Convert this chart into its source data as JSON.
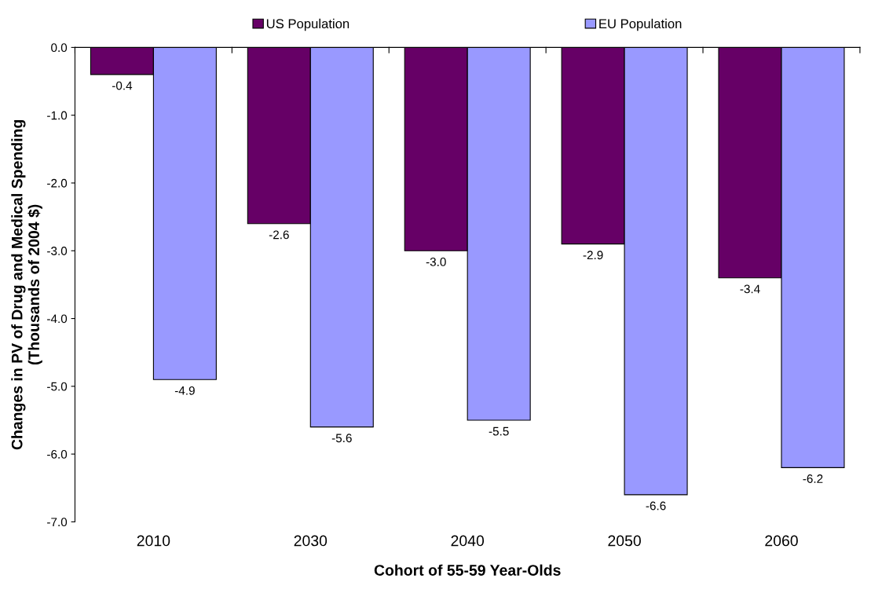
{
  "chart_data": {
    "type": "bar",
    "xlabel": "Cohort of 55-59 Year-Olds",
    "ylabel": "Changes in PV of Drug and Medical Spending\n(Thousands of 2004 $)",
    "categories": [
      "2010",
      "2030",
      "2040",
      "2050",
      "2060"
    ],
    "series": [
      {
        "name": "US Population",
        "color": "#660066",
        "values": [
          -0.4,
          -2.6,
          -3.0,
          -2.9,
          -3.4
        ],
        "value_labels": [
          "-0.4",
          "-2.6",
          "-3.0",
          "-2.9",
          "-3.4"
        ]
      },
      {
        "name": "EU Population",
        "color": "#9999ff",
        "values": [
          -4.9,
          -5.6,
          -5.5,
          -6.6,
          -6.2
        ],
        "value_labels": [
          "-4.9",
          "-5.6",
          "-5.5",
          "-6.6",
          "-6.2"
        ]
      }
    ],
    "ylim": [
      -7.0,
      0.0
    ],
    "yticks": [
      {
        "value": -7,
        "label": "-7.0"
      },
      {
        "value": -6,
        "label": "-6.0"
      },
      {
        "value": -5,
        "label": "-5.0"
      },
      {
        "value": -4,
        "label": "-4.0"
      },
      {
        "value": -3,
        "label": "-3.0"
      },
      {
        "value": -2,
        "label": "-2.0"
      },
      {
        "value": -1,
        "label": "-1.0"
      },
      {
        "value": 0,
        "label": "0.0"
      }
    ],
    "grid": false,
    "legend": "top"
  }
}
